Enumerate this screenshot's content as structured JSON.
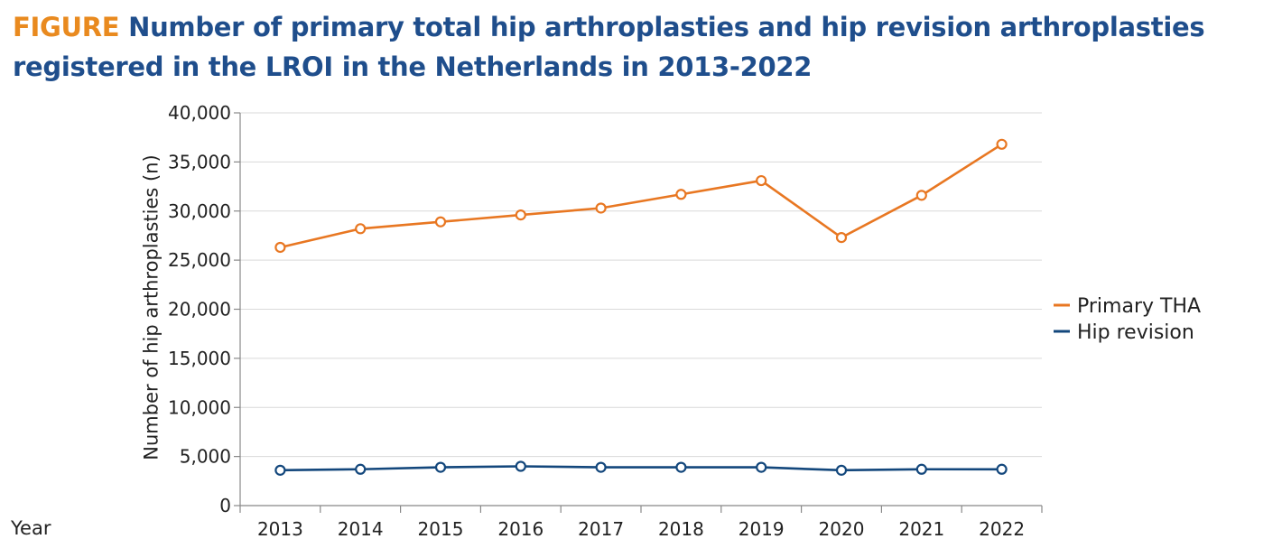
{
  "header": {
    "prefix": "FIGURE",
    "title": "Number of primary total hip arthroplasties and hip revision arthroplasties registered in the LROI in the Netherlands in 2013-2022"
  },
  "chart_data": {
    "type": "line",
    "title": "Number of primary total hip arthroplasties and hip revision arthroplasties registered in the LROI in the Netherlands in 2013-2022",
    "xlabel": "Year",
    "ylabel": "Number of hip arthroplasties (n)",
    "ylim": [
      0,
      40000
    ],
    "yticks": [
      0,
      5000,
      10000,
      15000,
      20000,
      25000,
      30000,
      35000,
      40000
    ],
    "ytick_labels": [
      "0",
      "5,000",
      "10,000",
      "15,000",
      "20,000",
      "25,000",
      "30,000",
      "35,000",
      "40,000"
    ],
    "categories": [
      "2013",
      "2014",
      "2015",
      "2016",
      "2017",
      "2018",
      "2019",
      "2020",
      "2021",
      "2022"
    ],
    "grid": true,
    "legend_position": "right",
    "series": [
      {
        "name": "Primary THA",
        "color": "#e87722",
        "values": [
          26300,
          28200,
          28900,
          29600,
          30300,
          31700,
          33100,
          27300,
          31600,
          36800
        ]
      },
      {
        "name": "Hip revision",
        "color": "#13477c",
        "values": [
          3600,
          3700,
          3900,
          4000,
          3900,
          3900,
          3900,
          3600,
          3700,
          3700
        ]
      }
    ]
  }
}
